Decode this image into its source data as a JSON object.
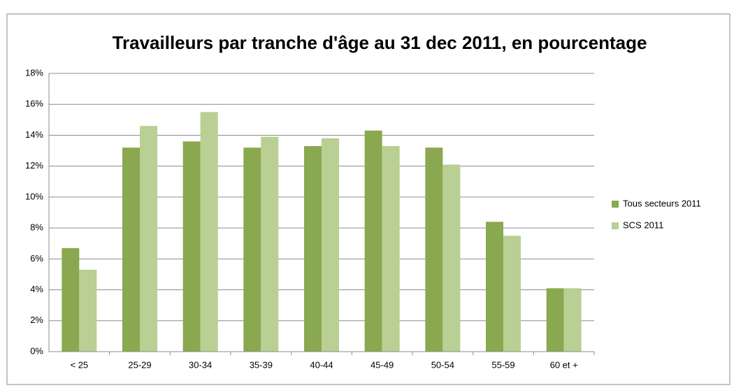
{
  "chart_data": {
    "type": "bar",
    "title": "Travailleurs par tranche d'âge au 31 dec 2011, en pourcentage",
    "categories": [
      "< 25",
      "25-29",
      "30-34",
      "35-39",
      "40-44",
      "45-49",
      "50-54",
      "55-59",
      "60 et +"
    ],
    "series": [
      {
        "name": "Tous secteurs 2011",
        "color": "#8aa84f",
        "values": [
          6.7,
          13.2,
          13.6,
          13.2,
          13.3,
          14.3,
          13.2,
          8.4,
          4.1
        ]
      },
      {
        "name": "SCS 2011",
        "color": "#b9cf93",
        "values": [
          5.3,
          14.6,
          15.5,
          13.9,
          13.8,
          13.3,
          12.1,
          7.5,
          4.1
        ]
      }
    ],
    "ylim": [
      0,
      18
    ],
    "yticks": [
      {
        "value": 0,
        "label": "0%"
      },
      {
        "value": 2,
        "label": "2%"
      },
      {
        "value": 4,
        "label": "4%"
      },
      {
        "value": 6,
        "label": "6%"
      },
      {
        "value": 8,
        "label": "8%"
      },
      {
        "value": 10,
        "label": "10%"
      },
      {
        "value": 12,
        "label": "12%"
      },
      {
        "value": 14,
        "label": "14%"
      },
      {
        "value": 16,
        "label": "16%"
      },
      {
        "value": 18,
        "label": "18%"
      }
    ],
    "grid": true,
    "legend": "right"
  }
}
